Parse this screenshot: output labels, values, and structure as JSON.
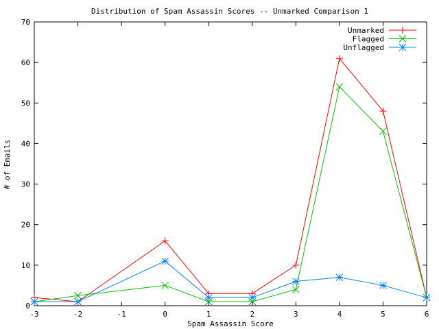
{
  "chart_data": {
    "type": "line",
    "title": "Distribution of Spam Assassin Scores -- Unmarked Comparison 1",
    "xlabel": "Spam Assassin Score",
    "ylabel": "# of Emails",
    "xlim": [
      -3,
      6
    ],
    "ylim": [
      0,
      70
    ],
    "xticks": [
      -3,
      -2,
      -1,
      0,
      1,
      2,
      3,
      4,
      5,
      6
    ],
    "yticks": [
      0,
      10,
      20,
      30,
      40,
      50,
      60,
      70
    ],
    "grid": false,
    "legend_position": "top-right",
    "series": [
      {
        "name": "Unmarked",
        "color": "#ff0000",
        "marker": "plus",
        "points": [
          [
            -3,
            2
          ],
          [
            -2,
            1
          ],
          [
            0,
            16
          ],
          [
            1,
            3
          ],
          [
            2,
            3
          ],
          [
            3,
            10
          ],
          [
            4,
            61
          ],
          [
            5,
            48
          ],
          [
            6,
            2
          ]
        ]
      },
      {
        "name": "Flagged",
        "color": "#00c000",
        "marker": "cross",
        "points": [
          [
            -3,
            1
          ],
          [
            -2,
            2.5
          ],
          [
            0,
            5
          ],
          [
            1,
            1
          ],
          [
            2,
            1
          ],
          [
            3,
            4
          ],
          [
            4,
            54
          ],
          [
            5,
            43
          ],
          [
            6,
            2
          ]
        ]
      },
      {
        "name": "Unflagged",
        "color": "#0080ff",
        "marker": "star",
        "points": [
          [
            -3,
            1
          ],
          [
            -2,
            1
          ],
          [
            0,
            11
          ],
          [
            1,
            2
          ],
          [
            2,
            2
          ],
          [
            3,
            6
          ],
          [
            4,
            7
          ],
          [
            5,
            5
          ],
          [
            6,
            2
          ]
        ]
      }
    ]
  }
}
